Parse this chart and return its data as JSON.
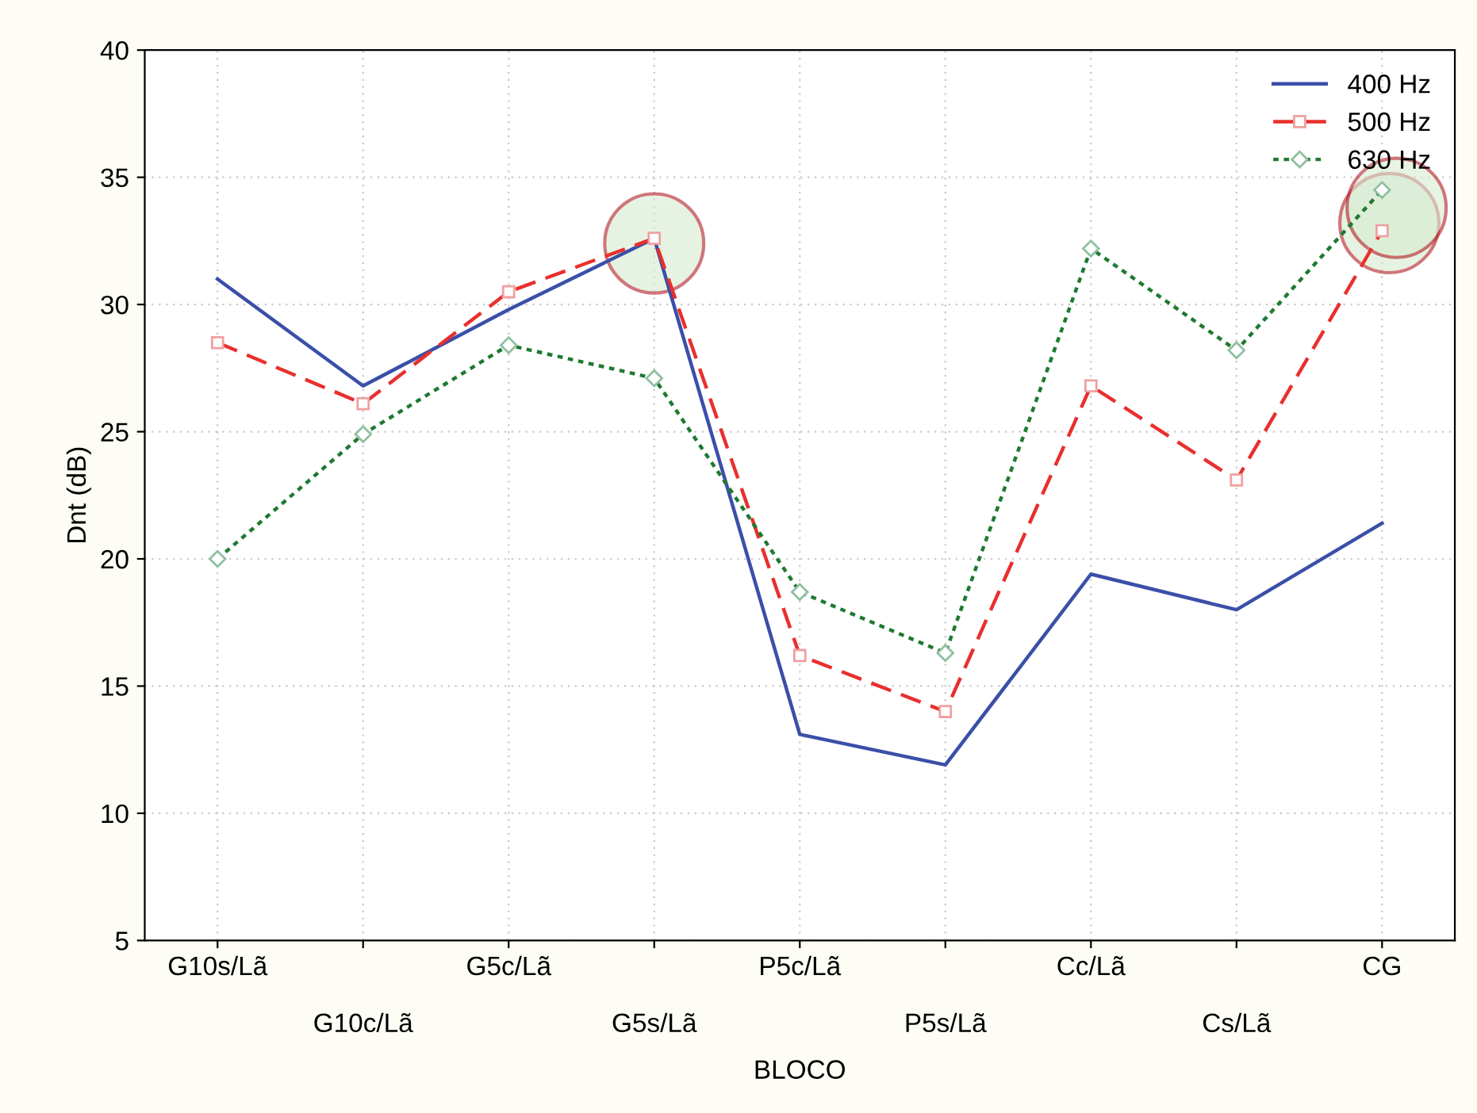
{
  "chart_data": {
    "type": "line",
    "xlabel": "BLOCO",
    "ylabel": "Dnt (dB)",
    "categories": [
      "G10s/Lã",
      "G10c/Lã",
      "G5c/Lã",
      "G5s/Lã",
      "P5c/Lã",
      "P5s/Lã",
      "Cc/Lã",
      "Cs/Lã",
      "CG"
    ],
    "series": [
      {
        "name": "400 Hz",
        "color": "#3a4fa8",
        "marker": "none",
        "line_style": "solid",
        "values": [
          31.0,
          26.8,
          29.8,
          32.6,
          13.1,
          11.9,
          19.4,
          18.0,
          21.4
        ]
      },
      {
        "name": "500 Hz",
        "color": "#e8302e",
        "marker": "square",
        "line_style": "dashed",
        "values": [
          28.5,
          26.1,
          30.5,
          32.6,
          16.2,
          14.0,
          26.8,
          23.1,
          32.9
        ]
      },
      {
        "name": "630 Hz",
        "color": "#1e7a32",
        "marker": "diamond",
        "line_style": "dotted",
        "values": [
          20.0,
          24.9,
          28.4,
          27.1,
          18.7,
          16.3,
          32.2,
          28.2,
          34.5
        ]
      }
    ],
    "ylim": [
      5,
      40
    ],
    "yticks": [
      5,
      10,
      15,
      20,
      25,
      30,
      35,
      40
    ],
    "grid": true,
    "legend": "top right"
  }
}
